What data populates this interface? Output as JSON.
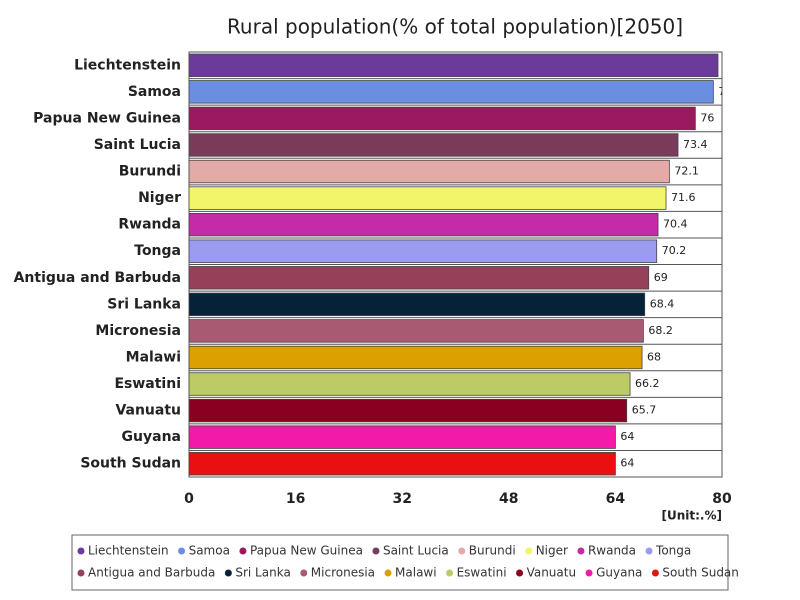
{
  "chart_data": {
    "type": "bar",
    "orientation": "horizontal",
    "title": "Rural population(% of total population)[2050]",
    "unit_label": "[Unit:.%]",
    "categories": [
      "Liechtenstein",
      "Samoa",
      "Papua New Guinea",
      "Saint Lucia",
      "Burundi",
      "Niger",
      "Rwanda",
      "Tonga",
      "Antigua and Barbuda",
      "Sri Lanka",
      "Micronesia",
      "Malawi",
      "Eswatini",
      "Vanuatu",
      "Guyana",
      "South Sudan"
    ],
    "values": [
      79.4,
      78.7,
      76,
      73.4,
      72.1,
      71.6,
      70.4,
      70.2,
      69,
      68.4,
      68.2,
      68,
      66.2,
      65.7,
      64,
      64
    ],
    "colors": [
      "#6b3a9b",
      "#6a8fe0",
      "#9b1a5f",
      "#7a3b5a",
      "#e4aaa8",
      "#f2f56a",
      "#c42ba8",
      "#9b9cf0",
      "#96405a",
      "#062238",
      "#a85a72",
      "#dca100",
      "#bccb66",
      "#8a0020",
      "#f21aa8",
      "#e81010"
    ],
    "xlim": [
      0,
      80
    ],
    "xticks": [
      0,
      16,
      32,
      48,
      64,
      80
    ],
    "grid": false
  }
}
